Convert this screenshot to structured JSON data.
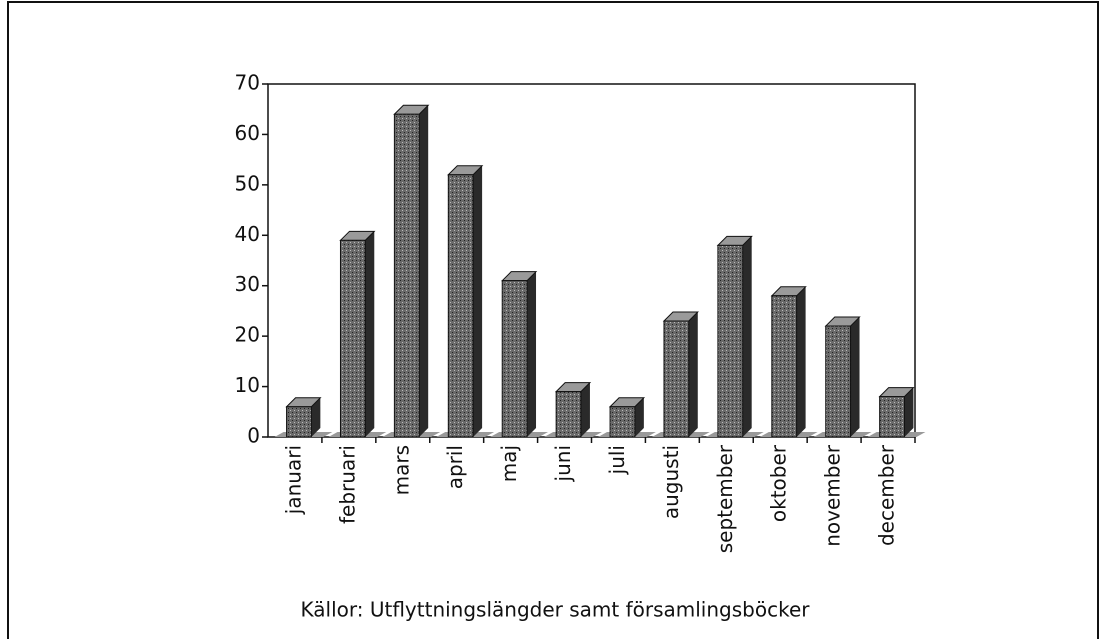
{
  "chart_data": {
    "type": "bar",
    "categories": [
      "januari",
      "februari",
      "mars",
      "april",
      "maj",
      "juni",
      "juli",
      "augusti",
      "september",
      "oktober",
      "november",
      "december"
    ],
    "values": [
      6,
      39,
      64,
      52,
      31,
      9,
      6,
      23,
      38,
      28,
      22,
      8
    ],
    "color": "#5a5a5a",
    "ylim": [
      0,
      70
    ],
    "yticks": [
      0,
      10,
      20,
      30,
      40,
      50,
      60,
      70
    ],
    "grid": false,
    "source": "Källor: Utflyttningslängder samt församlingsböcker"
  }
}
